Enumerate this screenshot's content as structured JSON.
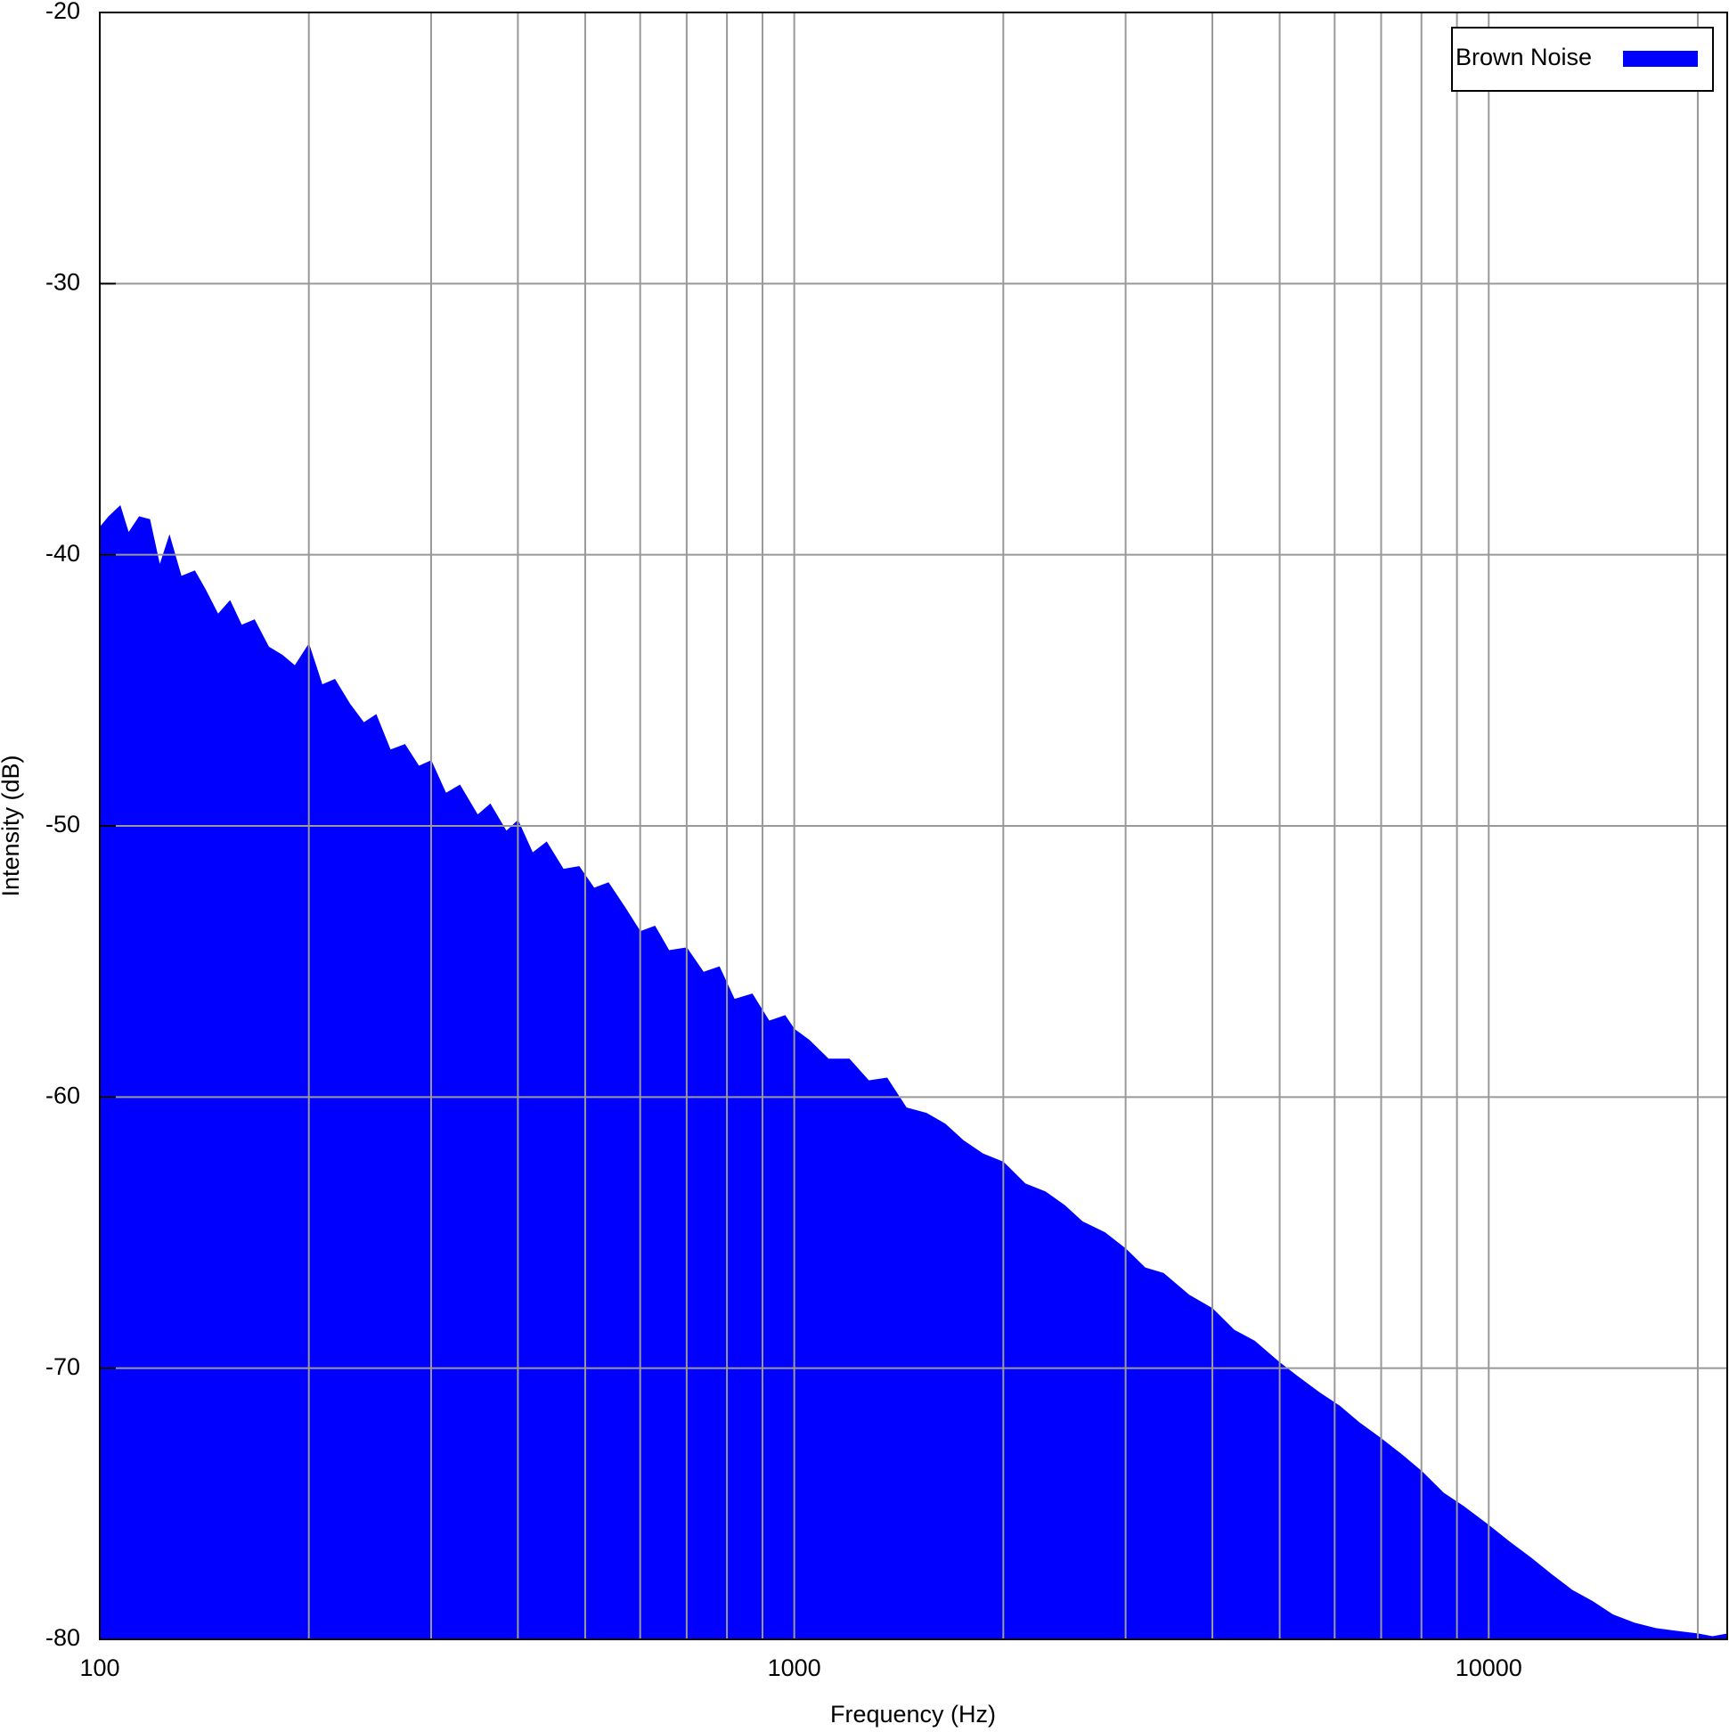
{
  "chart_data": {
    "type": "area",
    "xlabel": "Frequency (Hz)",
    "ylabel": "Intensity (dB)",
    "xscale": "log",
    "xlim": [
      100,
      22050
    ],
    "ylim": [
      -80,
      -20
    ],
    "xticks": [
      100,
      1000,
      10000
    ],
    "xminorticks": [
      200,
      300,
      400,
      500,
      600,
      700,
      800,
      900,
      2000,
      3000,
      4000,
      5000,
      6000,
      7000,
      8000,
      9000,
      20000
    ],
    "yticks": [
      -80,
      -70,
      -60,
      -50,
      -40,
      -30,
      -20
    ],
    "grid": true,
    "legend": "upper right",
    "x": [
      100,
      103,
      107,
      110,
      114,
      118,
      122,
      126,
      131,
      137,
      142,
      148,
      154,
      160,
      167,
      175,
      183,
      191,
      200,
      209,
      218,
      229,
      240,
      250,
      262,
      275,
      288,
      300,
      315,
      330,
      350,
      365,
      385,
      400,
      420,
      440,
      465,
      490,
      515,
      540,
      570,
      600,
      630,
      660,
      700,
      740,
      780,
      820,
      870,
      920,
      970,
      1000,
      1050,
      1120,
      1200,
      1280,
      1360,
      1450,
      1550,
      1650,
      1750,
      1870,
      2000,
      2150,
      2300,
      2450,
      2600,
      2800,
      3000,
      3200,
      3400,
      3700,
      4000,
      4300,
      4600,
      5000,
      5300,
      5700,
      6100,
      6500,
      7000,
      7500,
      8000,
      8600,
      9200,
      10000,
      10700,
      11500,
      12300,
      13200,
      14100,
      15100,
      16200,
      17400,
      18600,
      20000,
      21000,
      22050
    ],
    "series": [
      {
        "name": "Brown Noise",
        "color": "#0000ff",
        "values": [
          -39,
          -38.6,
          -38.2,
          -39.2,
          -38.6,
          -38.7,
          -40.4,
          -39.3,
          -40.8,
          -40.6,
          -41.3,
          -42.2,
          -41.7,
          -42.6,
          -42.4,
          -43.4,
          -43.7,
          -44.1,
          -43.3,
          -44.8,
          -44.6,
          -45.5,
          -46.2,
          -45.9,
          -47.2,
          -47,
          -47.8,
          -47.6,
          -48.8,
          -48.5,
          -49.6,
          -49.2,
          -50.2,
          -49.8,
          -51,
          -50.6,
          -51.6,
          -51.5,
          -52.3,
          -52.1,
          -53,
          -53.9,
          -53.7,
          -54.6,
          -54.5,
          -55.4,
          -55.2,
          -56.4,
          -56.2,
          -57.2,
          -57,
          -57.5,
          -57.9,
          -58.6,
          -58.6,
          -59.4,
          -59.3,
          -60.4,
          -60.6,
          -61,
          -61.6,
          -62.1,
          -62.4,
          -63.2,
          -63.5,
          -64,
          -64.6,
          -65,
          -65.6,
          -66.3,
          -66.5,
          -67.3,
          -67.8,
          -68.6,
          -69,
          -69.8,
          -70.3,
          -70.9,
          -71.4,
          -72,
          -72.6,
          -73.2,
          -73.8,
          -74.6,
          -75.1,
          -75.8,
          -76.4,
          -77,
          -77.6,
          -78.2,
          -78.6,
          -79.1,
          -79.4,
          -79.6,
          -79.7,
          -79.8,
          -79.9,
          -79.8
        ]
      }
    ]
  }
}
